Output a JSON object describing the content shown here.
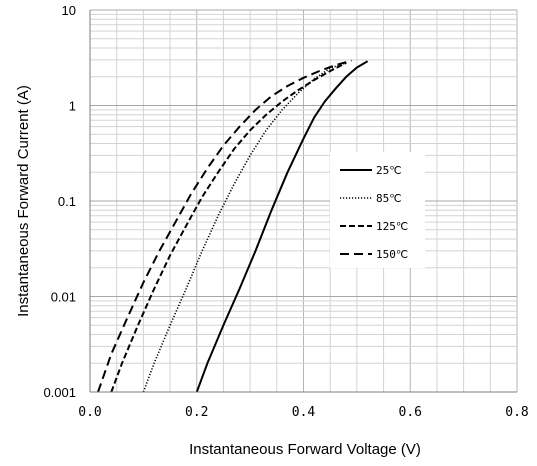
{
  "chart_data": {
    "type": "line",
    "title": "",
    "xlabel": "Instantaneous Forward Voltage (V)",
    "ylabel": "Instantaneous Forward Current (A)",
    "xlim": [
      0,
      0.8
    ],
    "ylim": [
      0.001,
      10
    ],
    "yscale": "log",
    "grid": true,
    "legend_position": "center-right",
    "x_ticks": [
      "0.0",
      "0.2",
      "0.4",
      "0.6",
      "0.8"
    ],
    "y_ticks": [
      "0.001",
      "0.01",
      "0.1",
      "1",
      "10"
    ],
    "series": [
      {
        "name": "25℃",
        "style": "solid",
        "x": [
          0.2,
          0.22,
          0.25,
          0.28,
          0.31,
          0.34,
          0.37,
          0.4,
          0.42,
          0.44,
          0.46,
          0.48,
          0.5,
          0.52
        ],
        "y": [
          0.001,
          0.002,
          0.005,
          0.012,
          0.03,
          0.08,
          0.2,
          0.45,
          0.75,
          1.1,
          1.5,
          2.0,
          2.5,
          2.9
        ]
      },
      {
        "name": "85℃",
        "style": "dotted",
        "x": [
          0.1,
          0.12,
          0.15,
          0.18,
          0.21,
          0.24,
          0.27,
          0.3,
          0.33,
          0.36,
          0.39,
          0.42,
          0.45,
          0.48
        ],
        "y": [
          0.001,
          0.002,
          0.005,
          0.012,
          0.03,
          0.07,
          0.15,
          0.3,
          0.55,
          0.9,
          1.35,
          1.9,
          2.45,
          2.8
        ]
      },
      {
        "name": "125℃",
        "style": "short-dash",
        "x": [
          0.04,
          0.06,
          0.09,
          0.12,
          0.15,
          0.18,
          0.21,
          0.24,
          0.27,
          0.3,
          0.33,
          0.36,
          0.39,
          0.42,
          0.45,
          0.48
        ],
        "y": [
          0.001,
          0.002,
          0.005,
          0.012,
          0.027,
          0.055,
          0.11,
          0.2,
          0.35,
          0.55,
          0.8,
          1.1,
          1.45,
          1.85,
          2.3,
          2.8
        ]
      },
      {
        "name": "150℃",
        "style": "long-dash",
        "x": [
          0.015,
          0.04,
          0.07,
          0.1,
          0.13,
          0.16,
          0.19,
          0.22,
          0.25,
          0.28,
          0.31,
          0.34,
          0.37,
          0.4,
          0.43,
          0.46,
          0.49
        ],
        "y": [
          0.001,
          0.0025,
          0.006,
          0.014,
          0.03,
          0.06,
          0.12,
          0.22,
          0.38,
          0.6,
          0.9,
          1.25,
          1.6,
          1.95,
          2.3,
          2.65,
          2.95
        ]
      }
    ]
  }
}
